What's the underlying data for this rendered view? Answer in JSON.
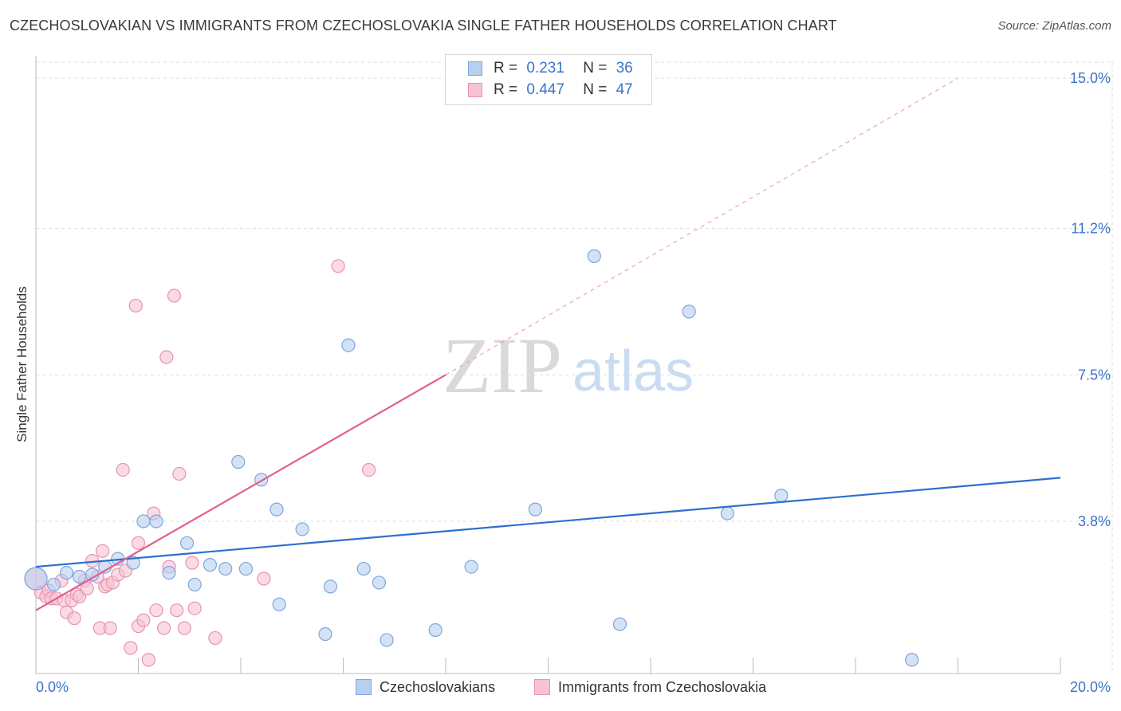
{
  "title": "CZECHOSLOVAKIAN VS IMMIGRANTS FROM CZECHOSLOVAKIA SINGLE FATHER HOUSEHOLDS CORRELATION CHART",
  "source": "Source: ZipAtlas.com",
  "watermark": {
    "zip": "ZIP",
    "atlas": "atlas"
  },
  "legend": {
    "rows": [
      {
        "r_label": "R =",
        "r_value": "0.231",
        "n_label": "N =",
        "n_value": "36"
      },
      {
        "r_label": "R =",
        "r_value": "0.447",
        "n_label": "N =",
        "n_value": "47"
      }
    ]
  },
  "bottom_legend": [
    "Czechoslovakians",
    "Immigrants from Czechoslovakia"
  ],
  "colors": {
    "blue_fill": "#b7cff0",
    "blue_stroke": "#7ea6dc",
    "blue_line": "#2d6fcf",
    "pink_fill": "#f7c3d3",
    "pink_stroke": "#e893ae",
    "pink_line": "#e0608a",
    "grid": "#dcdcdc",
    "axis_text": "#3b74c8"
  },
  "chart_data": {
    "type": "scatter",
    "title": "CZECHOSLOVAKIAN VS IMMIGRANTS FROM CZECHOSLOVAKIA SINGLE FATHER HOUSEHOLDS CORRELATION CHART",
    "xlabel": "",
    "ylabel": "Single Father Households",
    "xlim": [
      0,
      20
    ],
    "ylim": [
      0,
      15.5
    ],
    "x_tick_labels": [
      "0.0%",
      "20.0%"
    ],
    "y_ticks": [
      3.8,
      7.5,
      11.2,
      15.0
    ],
    "y_tick_labels": [
      "3.8%",
      "7.5%",
      "11.2%",
      "15.0%"
    ],
    "legend_position": "top-center",
    "series": [
      {
        "name": "Czechoslovakians",
        "r": 0.231,
        "n": 36,
        "points": [
          [
            0.0,
            2.35
          ],
          [
            0.35,
            2.2
          ],
          [
            0.6,
            2.5
          ],
          [
            0.85,
            2.4
          ],
          [
            1.1,
            2.45
          ],
          [
            1.35,
            2.65
          ],
          [
            1.6,
            2.85
          ],
          [
            1.9,
            2.75
          ],
          [
            2.1,
            3.8
          ],
          [
            2.35,
            3.8
          ],
          [
            2.6,
            2.5
          ],
          [
            2.95,
            3.25
          ],
          [
            3.1,
            2.2
          ],
          [
            3.4,
            2.7
          ],
          [
            3.7,
            2.6
          ],
          [
            3.95,
            5.3
          ],
          [
            4.1,
            2.6
          ],
          [
            4.4,
            4.85
          ],
          [
            4.7,
            4.1
          ],
          [
            4.75,
            1.7
          ],
          [
            5.2,
            3.6
          ],
          [
            5.65,
            0.95
          ],
          [
            5.75,
            2.15
          ],
          [
            6.1,
            8.25
          ],
          [
            6.4,
            2.6
          ],
          [
            6.7,
            2.25
          ],
          [
            6.85,
            0.8
          ],
          [
            7.8,
            1.05
          ],
          [
            8.5,
            2.65
          ],
          [
            9.75,
            4.1
          ],
          [
            10.9,
            10.5
          ],
          [
            11.4,
            1.2
          ],
          [
            12.75,
            9.1
          ],
          [
            13.5,
            4.0
          ],
          [
            14.55,
            4.45
          ],
          [
            17.1,
            0.3
          ]
        ],
        "trend": {
          "x0": 0,
          "y0": 2.65,
          "x1": 20,
          "y1": 4.9
        }
      },
      {
        "name": "Immigrants from Czechoslovakia",
        "r": 0.447,
        "n": 47,
        "points": [
          [
            0.0,
            2.35
          ],
          [
            0.1,
            2.0
          ],
          [
            0.2,
            1.9
          ],
          [
            0.25,
            2.05
          ],
          [
            0.3,
            1.85
          ],
          [
            0.4,
            1.85
          ],
          [
            0.5,
            2.3
          ],
          [
            0.55,
            1.8
          ],
          [
            0.6,
            1.5
          ],
          [
            0.7,
            1.8
          ],
          [
            0.75,
            1.35
          ],
          [
            0.8,
            1.95
          ],
          [
            0.85,
            1.9
          ],
          [
            0.95,
            2.3
          ],
          [
            1.0,
            2.1
          ],
          [
            1.1,
            2.8
          ],
          [
            1.2,
            2.4
          ],
          [
            1.25,
            1.1
          ],
          [
            1.3,
            3.05
          ],
          [
            1.35,
            2.15
          ],
          [
            1.4,
            2.2
          ],
          [
            1.45,
            1.1
          ],
          [
            1.5,
            2.25
          ],
          [
            1.6,
            2.45
          ],
          [
            1.7,
            5.1
          ],
          [
            1.75,
            2.55
          ],
          [
            1.85,
            0.6
          ],
          [
            1.95,
            9.25
          ],
          [
            2.0,
            1.15
          ],
          [
            2.0,
            3.25
          ],
          [
            2.1,
            1.3
          ],
          [
            2.2,
            0.3
          ],
          [
            2.3,
            4.0
          ],
          [
            2.35,
            1.55
          ],
          [
            2.5,
            1.1
          ],
          [
            2.55,
            7.95
          ],
          [
            2.6,
            2.65
          ],
          [
            2.7,
            9.5
          ],
          [
            2.75,
            1.55
          ],
          [
            2.8,
            5.0
          ],
          [
            2.9,
            1.1
          ],
          [
            3.05,
            2.75
          ],
          [
            3.1,
            1.6
          ],
          [
            3.5,
            0.85
          ],
          [
            4.45,
            2.35
          ],
          [
            5.9,
            10.25
          ],
          [
            6.5,
            5.1
          ]
        ],
        "trend": {
          "x0": 0,
          "y0": 1.55,
          "x1": 8.0,
          "y1": 7.5,
          "dashed_to": {
            "x": 18.0,
            "y": 15.0
          }
        }
      }
    ]
  }
}
